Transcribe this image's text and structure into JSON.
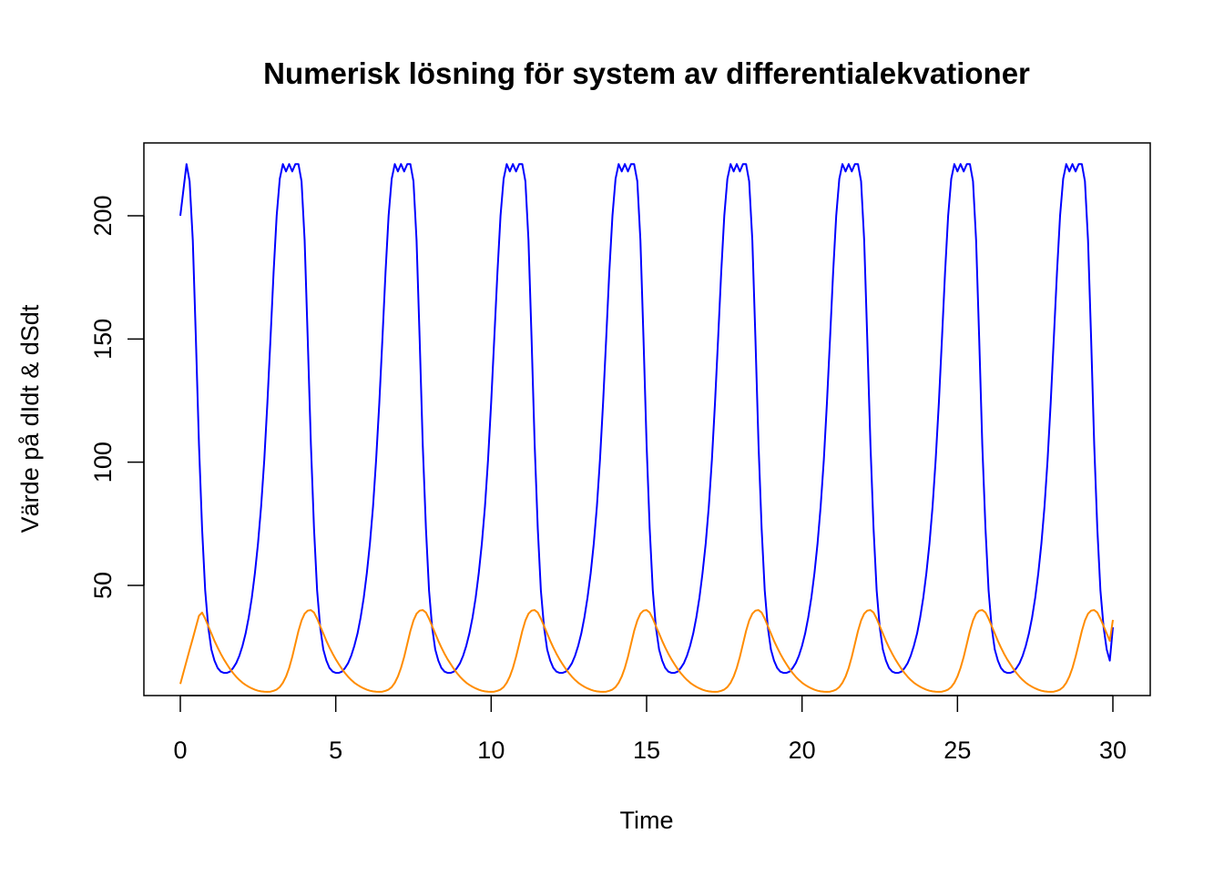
{
  "chart_data": {
    "type": "line",
    "title": "Numerisk lösning för system av differentialekvationer",
    "xlabel": "Time",
    "ylabel": "Värde på dIdt & dSdt",
    "xlim": [
      0,
      30
    ],
    "ylim": [
      6,
      230
    ],
    "xticks": [
      0,
      5,
      10,
      15,
      20,
      25,
      30
    ],
    "yticks": [
      50,
      100,
      150,
      200
    ],
    "grid": false,
    "legend": "none",
    "period": 3.6,
    "series": [
      {
        "color": "#0000ff",
        "peak_time": 0.2,
        "shape_t": [
          0,
          0.1,
          0.2,
          0.3,
          0.4,
          0.5,
          0.6,
          0.7,
          0.8,
          0.9,
          1.0,
          1.1,
          1.2,
          1.3,
          1.4,
          1.5,
          1.6,
          1.7,
          1.8,
          1.9,
          2.0,
          2.1,
          2.2,
          2.3,
          2.4,
          2.5,
          2.6,
          2.7,
          2.8,
          2.9,
          3.0,
          3.1,
          3.2,
          3.3,
          3.4,
          3.5,
          3.6
        ],
        "shape_v": [
          221,
          214,
          190,
          150,
          107,
          73,
          48,
          33,
          24,
          19.5,
          16.5,
          15,
          14.5,
          14.5,
          15,
          16.5,
          18.5,
          21.5,
          25.5,
          30.5,
          37,
          45,
          55,
          67,
          82,
          101,
          124,
          150,
          177,
          200,
          215,
          221,
          218,
          221,
          218,
          221,
          221
        ],
        "start_value": 200,
        "end_value": 33
      },
      {
        "color": "#ff8c00",
        "peak_time": 0.65,
        "shape_t": [
          0,
          0.1,
          0.2,
          0.3,
          0.4,
          0.5,
          0.6,
          0.7,
          0.8,
          0.9,
          1.0,
          1.1,
          1.2,
          1.3,
          1.4,
          1.5,
          1.6,
          1.7,
          1.8,
          1.9,
          2.0,
          2.1,
          2.2,
          2.3,
          2.4,
          2.5,
          2.6,
          2.7,
          2.8,
          2.9,
          3.0,
          3.1,
          3.2,
          3.3,
          3.4,
          3.5,
          3.6
        ],
        "shape_v": [
          40,
          38,
          35,
          32,
          29,
          26,
          23.5,
          21,
          19,
          17,
          15.2,
          13.6,
          12.2,
          11,
          10,
          9.2,
          8.5,
          7.9,
          7.4,
          7.1,
          6.9,
          6.8,
          6.8,
          7,
          7.4,
          8.1,
          9.4,
          11.5,
          14.5,
          18.5,
          23.5,
          29,
          34,
          37.5,
          39.5,
          40,
          40
        ],
        "start_value": 10,
        "end_value": 36
      }
    ]
  }
}
